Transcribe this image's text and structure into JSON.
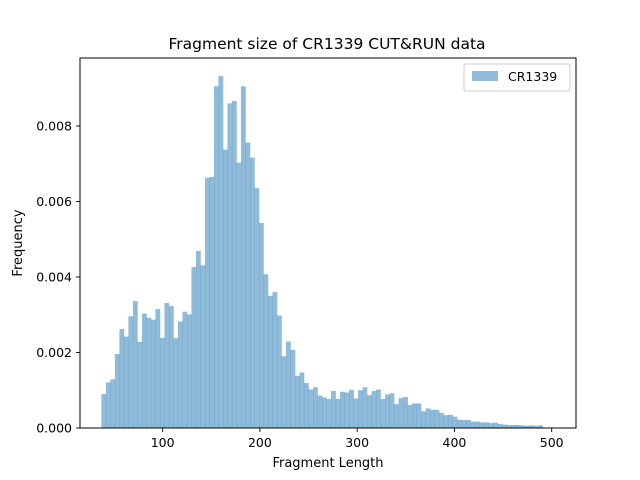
{
  "chart_data": {
    "type": "bar",
    "title": "Fragment size of CR1339 CUT&RUN data",
    "xlabel": "Fragment Length",
    "ylabel": "Frequency",
    "xlim": [
      15,
      525
    ],
    "ylim": [
      0,
      0.0098
    ],
    "legend": {
      "placement": "top-right"
    },
    "grid": false,
    "xticks": [
      {
        "value": 100,
        "label": "100"
      },
      {
        "value": 200,
        "label": "200"
      },
      {
        "value": 300,
        "label": "300"
      },
      {
        "value": 400,
        "label": "400"
      },
      {
        "value": 500,
        "label": "500"
      }
    ],
    "yticks": [
      {
        "value": 0,
        "label": "0.000"
      },
      {
        "value": 0.002,
        "label": "0.002"
      },
      {
        "value": 0.004,
        "label": "0.004"
      },
      {
        "value": 0.006,
        "label": "0.006"
      },
      {
        "value": 0.008,
        "label": "0.008"
      }
    ],
    "series": [
      {
        "name": "CR1339",
        "color": "#1f77b4",
        "opacity": 0.5,
        "bin_start": 37,
        "bin_width": 4.63,
        "values": [
          0.0009,
          0.00121,
          0.00129,
          0.00196,
          0.00262,
          0.00242,
          0.00296,
          0.00336,
          0.00228,
          0.00303,
          0.00292,
          0.00287,
          0.00315,
          0.00239,
          0.00331,
          0.00323,
          0.00238,
          0.00282,
          0.00308,
          0.00301,
          0.00426,
          0.00469,
          0.00431,
          0.00663,
          0.00665,
          0.00905,
          0.00932,
          0.00737,
          0.0086,
          0.00866,
          0.00703,
          0.00905,
          0.00756,
          0.00716,
          0.00635,
          0.00543,
          0.00407,
          0.0035,
          0.0036,
          0.00298,
          0.0019,
          0.00229,
          0.00207,
          0.00138,
          0.00147,
          0.00119,
          0.00102,
          0.00108,
          0.00086,
          0.00081,
          0.00077,
          0.00098,
          0.00077,
          0.00096,
          0.00094,
          0.00101,
          0.00078,
          0.001,
          0.00108,
          0.00087,
          0.00098,
          0.00102,
          0.00077,
          0.00089,
          0.00092,
          0.00063,
          0.00079,
          0.00082,
          0.00061,
          0.00065,
          0.00065,
          0.00044,
          0.00052,
          0.00048,
          0.00048,
          0.0004,
          0.00034,
          0.00035,
          0.0003,
          0.00022,
          0.00021,
          0.00021,
          0.00017,
          0.00017,
          0.00015,
          0.00015,
          0.00013,
          0.00014,
          0.00011,
          9e-05,
          8e-05,
          8e-05,
          8e-05,
          7e-05,
          6e-05,
          7e-05,
          6e-05,
          7e-05
        ]
      }
    ]
  }
}
